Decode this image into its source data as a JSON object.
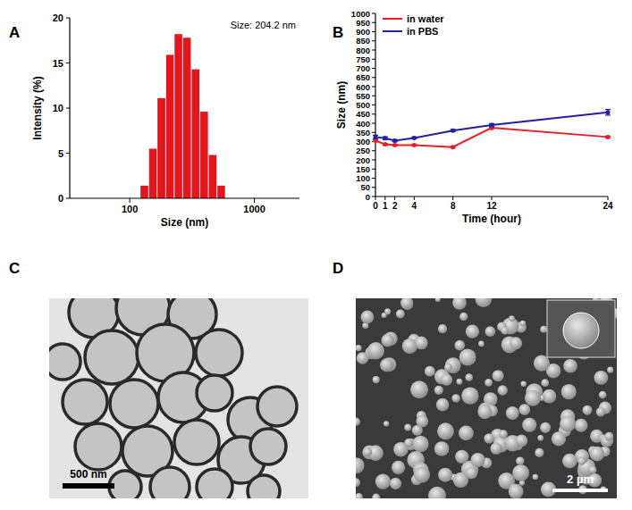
{
  "panel_labels": [
    "A",
    "B",
    "C",
    "D"
  ],
  "chart_data": [
    {
      "type": "histogram",
      "annotation": "Size: 204.2 nm",
      "x_label": "Size (nm)",
      "y_label": "Intensity (%)",
      "bins": [
        122,
        143,
        167,
        196,
        229,
        268,
        314,
        368,
        431,
        505,
        591
      ],
      "values": [
        1.4,
        5.5,
        11.1,
        15.9,
        18.2,
        17.8,
        14.3,
        9.6,
        4.8,
        1.4
      ],
      "color": "#e8141c",
      "log": "x",
      "xlim": [
        33,
        2300
      ],
      "xticks": [
        100,
        1000
      ],
      "ylim": [
        0,
        20
      ],
      "yticks": [
        0,
        5,
        10,
        15,
        20
      ]
    },
    {
      "type": "line",
      "x_label": "Time (hour)",
      "y_label": "Size (nm)",
      "x": [
        0,
        1,
        2,
        4,
        8,
        12,
        24
      ],
      "series": [
        {
          "name": "in water",
          "color": "#ee1c24",
          "marker": "circle",
          "values": [
            305,
            285,
            280,
            280,
            270,
            375,
            325
          ],
          "errors": [
            5,
            5,
            4,
            4,
            4,
            6,
            5
          ]
        },
        {
          "name": "in PBS",
          "color": "#1f1fa8",
          "marker": "circle",
          "values": [
            325,
            318,
            305,
            320,
            360,
            390,
            460
          ],
          "errors": [
            10,
            8,
            6,
            5,
            6,
            8,
            15
          ]
        }
      ],
      "legend": "upper left",
      "xlim": [
        0,
        24
      ],
      "xticks": [
        0,
        1,
        2,
        4,
        8,
        12,
        24
      ],
      "ylim": [
        0,
        1000
      ],
      "yticks": [
        0,
        50,
        100,
        150,
        200,
        250,
        300,
        350,
        400,
        450,
        500,
        550,
        600,
        650,
        700,
        750,
        800,
        850,
        900,
        950,
        1000
      ]
    }
  ],
  "images": [
    {
      "scale_bar": "500 nm"
    },
    {
      "scale_bar": "2 µm"
    }
  ]
}
